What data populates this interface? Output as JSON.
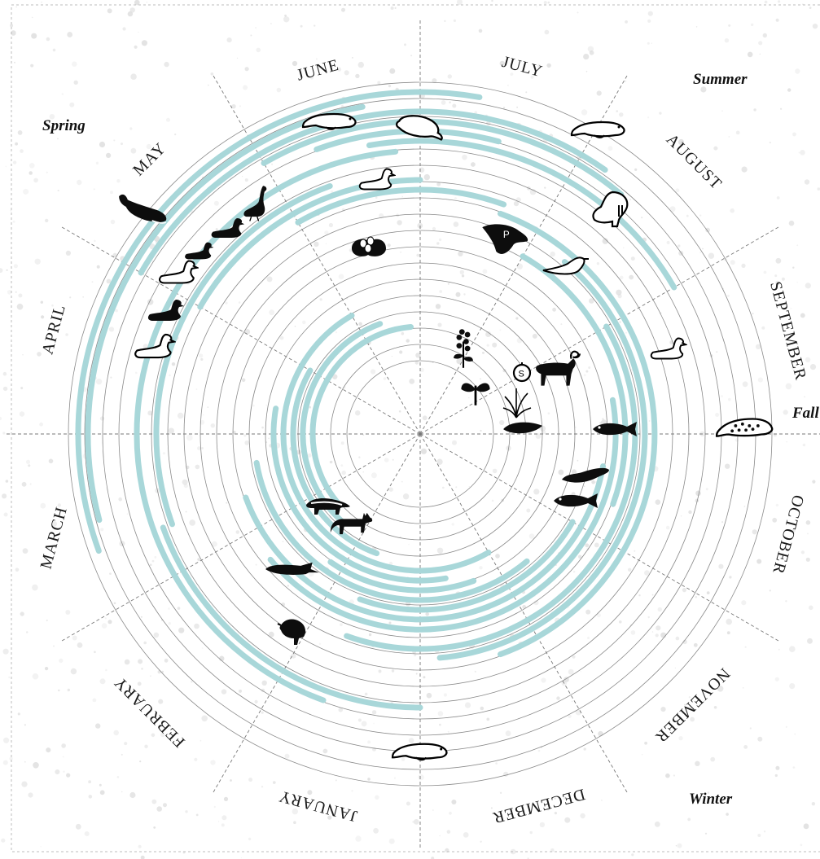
{
  "colors": {
    "band": "#a8d7d9",
    "ring": "#8a8a8a",
    "spoke": "#777777",
    "icon": "#0d0d0d",
    "speckle": "#d9d9d9"
  },
  "months": [
    "JANUARY",
    "FEBRUARY",
    "MARCH",
    "APRIL",
    "MAY",
    "JUNE",
    "JULY",
    "AUGUST",
    "SEPTEMBER",
    "OCTOBER",
    "NOVEMBER",
    "DECEMBER"
  ],
  "seasons": {
    "spring": "Spring",
    "summer": "Summer",
    "fall": "Fall",
    "winter": "Winter"
  },
  "icons": [
    {
      "name": "bowhead-whale-icon"
    },
    {
      "name": "goose-icon"
    },
    {
      "name": "swan-icon"
    },
    {
      "name": "eider-duck-icon"
    },
    {
      "name": "spotted-duck-icon"
    },
    {
      "name": "diving-duck-icon"
    },
    {
      "name": "loon-icon"
    },
    {
      "name": "bearded-seal-icon"
    },
    {
      "name": "beluga-icon"
    },
    {
      "name": "ringed-seal-icon"
    },
    {
      "name": "walrus-icon"
    },
    {
      "name": "duck-icon"
    },
    {
      "name": "bird-eggs-icon"
    },
    {
      "name": "ptarmigan-icon"
    },
    {
      "name": "gull-icon"
    },
    {
      "name": "sea-duck-icon"
    },
    {
      "name": "spotted-seal-icon"
    },
    {
      "name": "berry-plant-icon"
    },
    {
      "name": "greens-plant-icon"
    },
    {
      "name": "salmonberry-icon"
    },
    {
      "name": "caribou-icon"
    },
    {
      "name": "sedge-plant-icon"
    },
    {
      "name": "leaf-icon"
    },
    {
      "name": "char-fish-icon"
    },
    {
      "name": "burbot-fish-icon"
    },
    {
      "name": "whitefish-icon"
    },
    {
      "name": "wolverine-icon"
    },
    {
      "name": "fox-icon"
    },
    {
      "name": "pike-fish-icon"
    },
    {
      "name": "grouse-icon"
    },
    {
      "name": "winter-seal-icon"
    }
  ]
}
